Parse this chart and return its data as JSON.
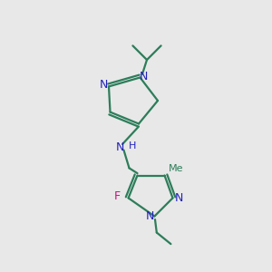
{
  "bg_color": "#e8e8e8",
  "bond_color": "#2d7d5a",
  "N_color": "#2222bb",
  "F_color": "#cc1080",
  "line_width": 1.6,
  "fig_size": [
    3.0,
    3.0
  ],
  "dpi": 100,
  "xlim": [
    0,
    10
  ],
  "ylim": [
    0,
    10
  ]
}
